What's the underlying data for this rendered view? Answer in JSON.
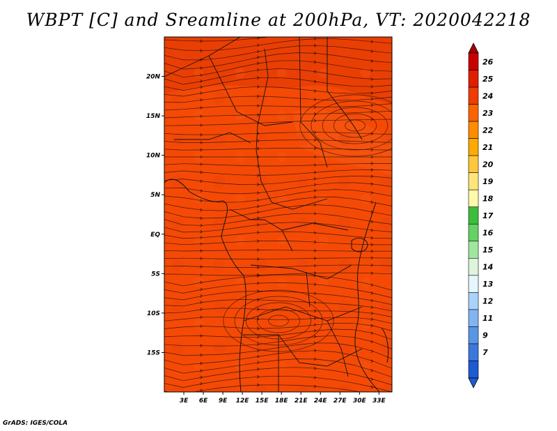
{
  "title": "WBPT [C] and Sreamline at 200hPa, VT: 2020042218",
  "credit": "GrADS: IGES/COLA",
  "map": {
    "field_color": "#f44a06",
    "lat_labels": [
      "20N",
      "15N",
      "10N",
      "5N",
      "EQ",
      "5S",
      "10S",
      "15S"
    ],
    "lat_values": [
      20,
      15,
      10,
      5,
      0,
      -5,
      -10,
      -15
    ],
    "lon_labels": [
      "3E",
      "6E",
      "9E",
      "12E",
      "15E",
      "18E",
      "21E",
      "24E",
      "27E",
      "30E",
      "33E"
    ],
    "lon_values": [
      3,
      6,
      9,
      12,
      15,
      18,
      21,
      24,
      27,
      30,
      33
    ],
    "lat_range": [
      -20,
      25
    ],
    "lon_range": [
      0,
      35
    ]
  },
  "colorbar": {
    "labels": [
      "26",
      "25",
      "24",
      "23",
      "22",
      "21",
      "20",
      "19",
      "18",
      "17",
      "16",
      "15",
      "14",
      "13",
      "12",
      "11",
      "9",
      "7"
    ],
    "colors": [
      "#a50000",
      "#c80000",
      "#e11e00",
      "#f03c00",
      "#fa6400",
      "#ff8c00",
      "#ffaa00",
      "#ffc83c",
      "#ffe678",
      "#fffaaa",
      "#3cbe3c",
      "#64d264",
      "#a0e6a0",
      "#dcf5dc",
      "#e6f5ff",
      "#aad2fa",
      "#82b4f0",
      "#5a96e6",
      "#3c78dc",
      "#1e5ad2"
    ]
  }
}
